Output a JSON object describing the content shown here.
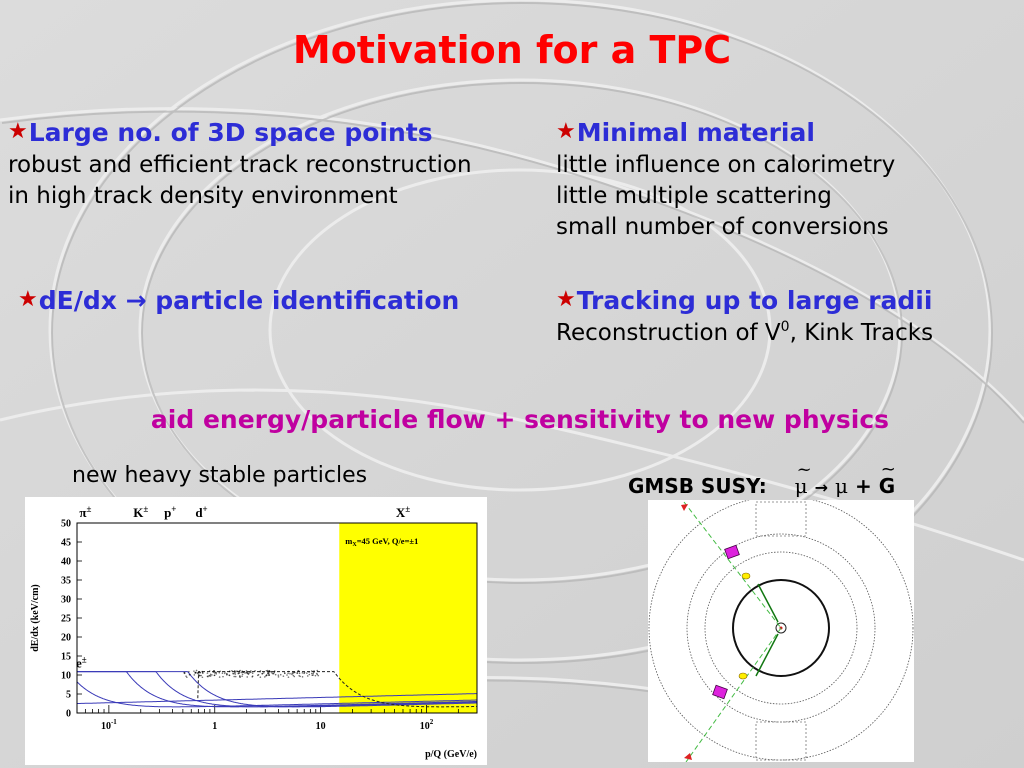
{
  "slide": {
    "title": "Motivation for a TPC",
    "star_glyph": "★",
    "colors": {
      "title": "#ff0000",
      "heading": "#2d2dd6",
      "star": "#cc0000",
      "highlight": "#c000a0",
      "yellow_band": "#ffff00"
    },
    "blocks": [
      {
        "heading": "Large no. of 3D space points",
        "lines": [
          "robust and efficient track reconstruction",
          "in high track density environment"
        ]
      },
      {
        "heading": "Minimal material",
        "lines": [
          "little influence on calorimetry",
          "little multiple scattering",
          "small number of conversions"
        ]
      },
      {
        "heading": "dE/dx → particle identification",
        "lines": []
      },
      {
        "heading": "Tracking up to large radii",
        "line_pre": "Reconstruction of V",
        "line_sup": "0",
        "line_post": ", Kink Tracks"
      }
    ],
    "summary": "aid energy/particle flow + sensitivity to new physics",
    "new_heavy_label": "new heavy stable particles",
    "gmsb": {
      "label": "GMSB SUSY:",
      "lhs": "μ",
      "arrow": "→",
      "rhs_particle": "μ",
      "plus": "+",
      "gravitino": "G"
    }
  },
  "chart_data": {
    "type": "line",
    "xlabel": "p/Q (GeV/e)",
    "ylabel": "dE/dx (keV/cm)",
    "xscale": "log",
    "xlim": [
      0.05,
      300
    ],
    "ylim": [
      0,
      50
    ],
    "yticks": [
      0,
      5,
      10,
      15,
      20,
      25,
      30,
      35,
      40,
      45,
      50
    ],
    "xticks": [
      {
        "value": 0.1,
        "base": "10",
        "exp": "-1"
      },
      {
        "value": 1,
        "base": "1",
        "exp": ""
      },
      {
        "value": 10,
        "base": "10",
        "exp": ""
      },
      {
        "value": 100,
        "base": "10",
        "exp": "2"
      }
    ],
    "particle_labels": [
      {
        "name": "π",
        "sup": "±",
        "x": 0.06
      },
      {
        "name": "K",
        "sup": "±",
        "x": 0.2
      },
      {
        "name": "p",
        "sup": "+",
        "x": 0.38
      },
      {
        "name": "d",
        "sup": "+",
        "x": 0.75
      },
      {
        "name": "X",
        "sup": "±",
        "x": 60
      },
      {
        "name": "e",
        "sup": "±",
        "x": 0.055,
        "y": 12
      }
    ],
    "annotation": "m",
    "annotation_sub": "X",
    "annotation_rest": "=45 GeV, Q/e=±1",
    "highlight_region": {
      "xmin": 15,
      "xmax": 300
    },
    "series": [
      {
        "mass": 0.000511,
        "style": "solid"
      },
      {
        "mass": 0.1396,
        "style": "solid"
      },
      {
        "mass": 0.4937,
        "style": "solid"
      },
      {
        "mass": 0.9383,
        "style": "solid"
      },
      {
        "mass": 1.8756,
        "style": "solid"
      },
      {
        "mass": 45,
        "style": "dashed"
      }
    ]
  }
}
